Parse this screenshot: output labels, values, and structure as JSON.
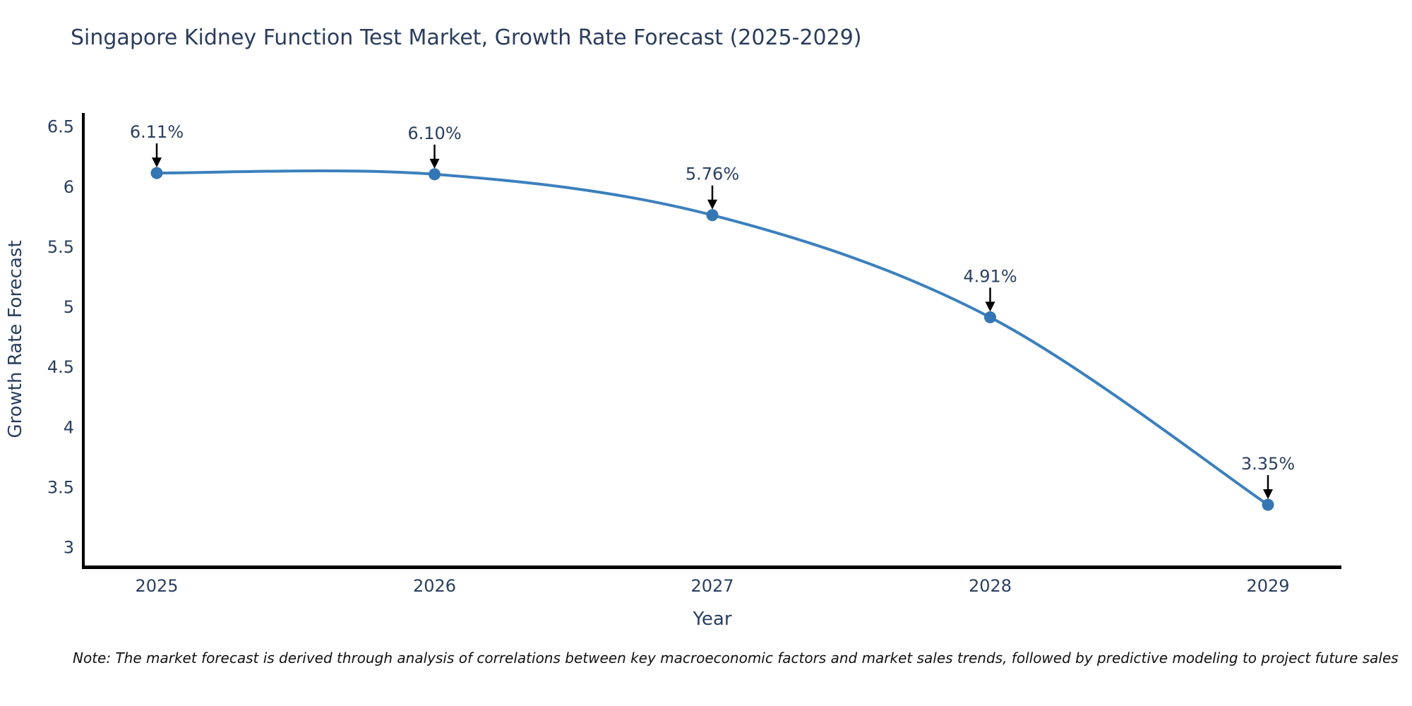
{
  "chart_data": {
    "type": "line",
    "title": "Singapore Kidney Function Test Market, Growth Rate Forecast (2025-2029)",
    "xlabel": "Year",
    "ylabel": "Growth Rate Forecast",
    "x": [
      "2025",
      "2026",
      "2027",
      "2028",
      "2029"
    ],
    "values": [
      6.11,
      6.1,
      5.76,
      4.91,
      3.35
    ],
    "point_labels": [
      "6.11%",
      "6.10%",
      "5.76%",
      "4.91%",
      "3.35%"
    ],
    "yticks": [
      3,
      3.5,
      4,
      4.5,
      5,
      5.5,
      6,
      6.5
    ],
    "ytick_labels": [
      "3",
      "3.5",
      "4",
      "4.5",
      "5",
      "5.5",
      "6",
      "6.5"
    ],
    "ylim": [
      2.845,
      6.61
    ],
    "grid": false,
    "legend": "none",
    "line_color": "#3c80bd",
    "marker_color": "#3376b3",
    "axis_color": "#000000",
    "annotation_color": "#000000",
    "text_color": "#2a3f5f",
    "note": "Note: The market forecast is derived through analysis of correlations between key macroeconomic factors and market sales trends, followed by predictive modeling to project future sales"
  }
}
